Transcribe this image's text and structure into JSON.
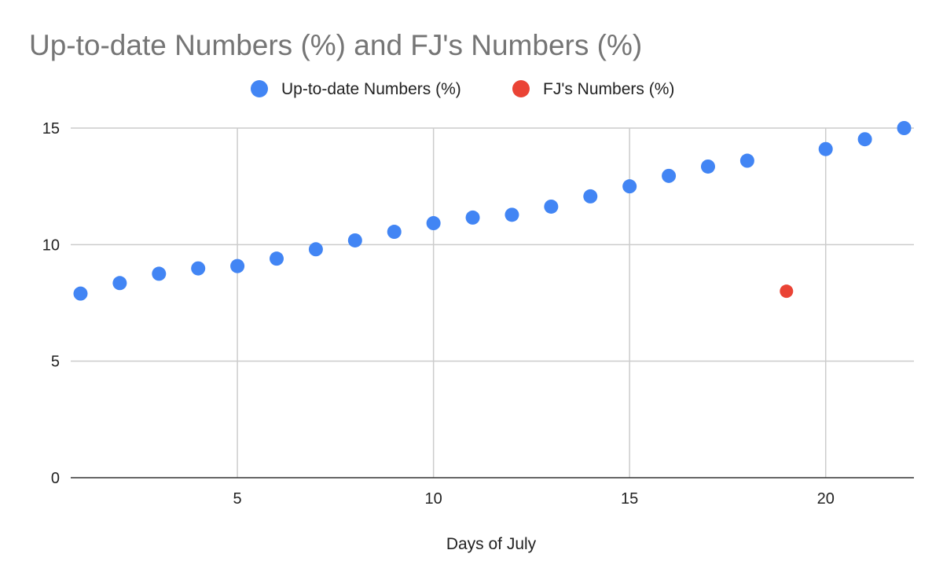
{
  "chart_data": {
    "type": "scatter",
    "title": "Up-to-date Numbers (%) and FJ's Numbers (%)",
    "xlabel": "Days of July",
    "ylabel": "",
    "xlim": [
      0.75,
      22.25
    ],
    "ylim": [
      0,
      15
    ],
    "x_ticks": [
      5,
      10,
      15,
      20
    ],
    "y_ticks": [
      0,
      5,
      10,
      15
    ],
    "grid": true,
    "legend_position": "top",
    "series": [
      {
        "name": "Up-to-date Numbers (%)",
        "color": "#4285f4",
        "points": [
          [
            1,
            7.9
          ],
          [
            2,
            8.35
          ],
          [
            3,
            8.75
          ],
          [
            4,
            8.98
          ],
          [
            5,
            9.08
          ],
          [
            6,
            9.4
          ],
          [
            7,
            9.8
          ],
          [
            8,
            10.18
          ],
          [
            9,
            10.55
          ],
          [
            10,
            10.92
          ],
          [
            11,
            11.16
          ],
          [
            12,
            11.28
          ],
          [
            13,
            11.63
          ],
          [
            14,
            12.07
          ],
          [
            15,
            12.5
          ],
          [
            16,
            12.95
          ],
          [
            17,
            13.35
          ],
          [
            18,
            13.6
          ],
          [
            20,
            14.1
          ],
          [
            21,
            14.52
          ],
          [
            22,
            15.0
          ]
        ]
      },
      {
        "name": "FJ's Numbers (%)",
        "color": "#ea4335",
        "points": [
          [
            19,
            8.0
          ]
        ]
      }
    ]
  }
}
